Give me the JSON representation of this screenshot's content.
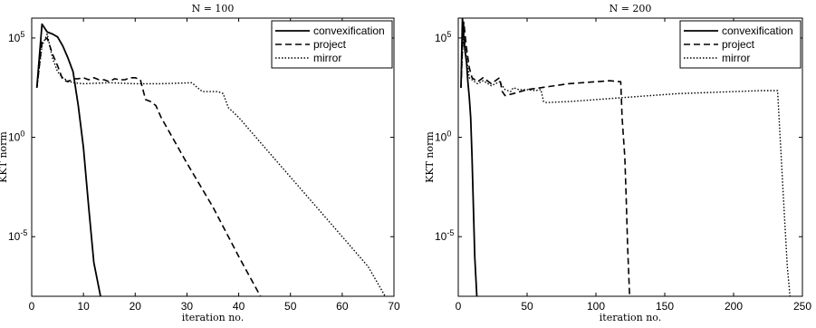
{
  "chart_data": [
    {
      "type": "line",
      "title": "N = 100",
      "xlabel": "iteration no.",
      "ylabel": "KKT norm",
      "xlim": [
        0,
        70
      ],
      "ylim": [
        -8,
        6
      ],
      "yscale": "log",
      "grid": false,
      "legend": "top-right",
      "xticks": [
        0,
        10,
        20,
        30,
        40,
        50,
        60,
        70
      ],
      "yticks": [
        {
          "exp": "5"
        },
        {
          "exp": "0"
        },
        {
          "exp": "-5"
        }
      ],
      "series": [
        {
          "name": "convexification",
          "style": "solid",
          "x": [
            1,
            2,
            3,
            4,
            5,
            6,
            7,
            8,
            9,
            10,
            11,
            12,
            13.3
          ],
          "y": [
            2.5,
            5.7,
            5.3,
            5.2,
            5.05,
            4.6,
            4.0,
            3.3,
            1.6,
            -0.5,
            -3.5,
            -6.3,
            -8
          ]
        },
        {
          "name": "project",
          "style": "dashed",
          "x": [
            1,
            2,
            3,
            4,
            5,
            6,
            7,
            8,
            9,
            10,
            11,
            12,
            13,
            14,
            15,
            16,
            17,
            18,
            19,
            20,
            21,
            22,
            23,
            24,
            25,
            30,
            35,
            40,
            44.2
          ],
          "y": [
            2.5,
            4.8,
            5.0,
            4.2,
            3.6,
            2.9,
            2.8,
            2.95,
            2.95,
            3.0,
            2.9,
            3.0,
            2.9,
            2.9,
            2.8,
            2.95,
            2.9,
            2.9,
            3.0,
            3.0,
            2.9,
            1.9,
            1.8,
            1.6,
            1.0,
            -1.3,
            -3.5,
            -6.0,
            -8
          ]
        },
        {
          "name": "mirror",
          "style": "dotted",
          "x": [
            1,
            2,
            3,
            4,
            5,
            6,
            7,
            8,
            10,
            15,
            20,
            25,
            31,
            32,
            33,
            34,
            36,
            37,
            38,
            40,
            45,
            50,
            55,
            60,
            65,
            68.3
          ],
          "y": [
            2.5,
            4.6,
            5.2,
            4.0,
            3.3,
            3.0,
            2.85,
            2.75,
            2.7,
            2.75,
            2.7,
            2.7,
            2.75,
            2.5,
            2.3,
            2.3,
            2.3,
            2.2,
            1.5,
            1.0,
            -0.5,
            -2.0,
            -3.5,
            -5.0,
            -6.5,
            -8
          ]
        }
      ]
    },
    {
      "type": "line",
      "title": "N = 200",
      "xlabel": "iteration no.",
      "ylabel": "KKT norm",
      "xlim": [
        0,
        250
      ],
      "ylim": [
        -8,
        6
      ],
      "yscale": "log",
      "grid": false,
      "legend": "top-right",
      "xticks": [
        0,
        50,
        100,
        150,
        200,
        250
      ],
      "yticks": [
        {
          "exp": "5"
        },
        {
          "exp": "0"
        },
        {
          "exp": "-5"
        }
      ],
      "series": [
        {
          "name": "convexification",
          "style": "solid",
          "x": [
            2,
            3,
            4,
            5,
            6,
            7,
            8,
            9,
            10,
            11,
            12,
            13.5
          ],
          "y": [
            2.5,
            6.0,
            5.0,
            4.3,
            3.8,
            2.8,
            2.0,
            1.0,
            -1.0,
            -3.5,
            -6.0,
            -8
          ]
        },
        {
          "name": "project",
          "style": "dashed",
          "x": [
            2,
            3,
            4,
            6,
            8,
            10,
            14,
            18,
            24,
            30,
            32,
            34,
            40,
            50,
            60,
            70,
            80,
            90,
            100,
            110,
            118,
            119,
            121,
            122,
            123,
            124.5
          ],
          "y": [
            2.5,
            4.5,
            5.8,
            4.5,
            3.5,
            3.0,
            2.8,
            3.0,
            2.7,
            3.0,
            2.3,
            2.1,
            2.2,
            2.4,
            2.5,
            2.6,
            2.7,
            2.75,
            2.8,
            2.85,
            2.8,
            1.0,
            -1.0,
            -3.0,
            -5.5,
            -8
          ]
        },
        {
          "name": "mirror",
          "style": "dotted",
          "x": [
            2,
            3,
            4,
            6,
            8,
            10,
            14,
            18,
            24,
            30,
            34,
            38,
            40,
            44,
            50,
            56,
            60,
            62,
            64,
            80,
            100,
            120,
            140,
            160,
            180,
            200,
            220,
            232,
            233,
            235,
            237,
            239,
            241
          ],
          "y": [
            2.5,
            4.3,
            5.3,
            4.0,
            3.0,
            2.9,
            2.7,
            2.85,
            2.6,
            2.8,
            2.4,
            2.3,
            2.5,
            2.4,
            2.4,
            2.35,
            2.4,
            1.8,
            1.75,
            1.8,
            1.9,
            2.0,
            2.1,
            2.2,
            2.25,
            2.3,
            2.35,
            2.35,
            1.0,
            -1.5,
            -4.0,
            -6.5,
            -8
          ]
        }
      ]
    }
  ]
}
